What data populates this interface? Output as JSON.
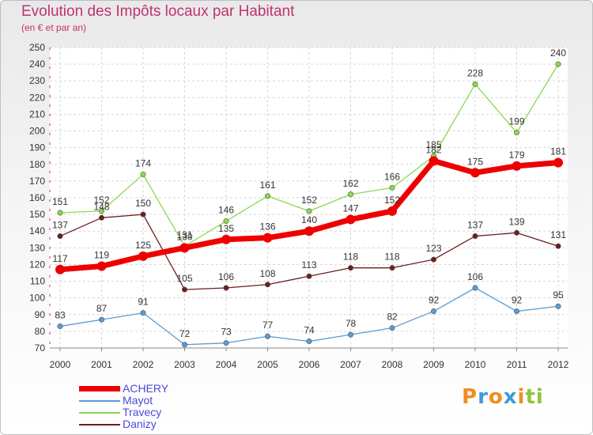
{
  "title": "Evolution des Impôts locaux par Habitant",
  "subtitle": "(en € et par an)",
  "logo": "Proxiti",
  "chart_data": {
    "type": "line",
    "x": [
      2000,
      2001,
      2002,
      2003,
      2004,
      2005,
      2006,
      2007,
      2008,
      2009,
      2010,
      2011,
      2012
    ],
    "ylim": [
      70,
      250
    ],
    "yticks": [
      70,
      80,
      90,
      100,
      110,
      120,
      130,
      140,
      150,
      160,
      170,
      180,
      190,
      200,
      210,
      220,
      230,
      240,
      250
    ],
    "grid": true,
    "legend_position": "bottom-left",
    "series": [
      {
        "name": "ACHERY",
        "color": "#ee0000",
        "values": [
          117,
          119,
          125,
          130,
          135,
          136,
          140,
          147,
          152,
          182,
          175,
          179,
          181
        ]
      },
      {
        "name": "Mayot",
        "color": "#5b9bd5",
        "values": [
          83,
          87,
          91,
          72,
          73,
          77,
          74,
          78,
          82,
          92,
          106,
          92,
          95
        ]
      },
      {
        "name": "Travecy",
        "color": "#8ad94a",
        "values": [
          151,
          152,
          174,
          131,
          146,
          161,
          152,
          162,
          166,
          185,
          228,
          199,
          240
        ]
      },
      {
        "name": "Danizy",
        "color": "#6b1f1f",
        "values": [
          137,
          148,
          150,
          105,
          106,
          108,
          113,
          118,
          118,
          123,
          137,
          139,
          131
        ]
      }
    ]
  }
}
